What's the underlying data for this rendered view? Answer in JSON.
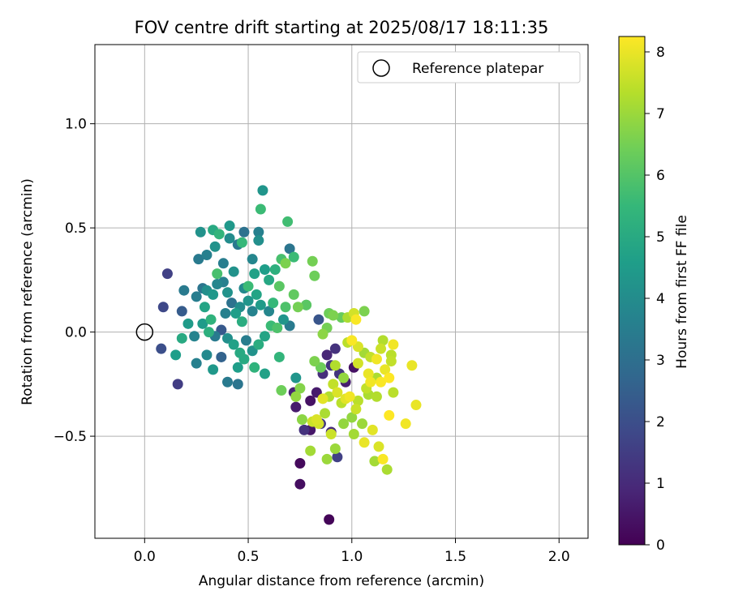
{
  "chart_data": {
    "type": "scatter",
    "title": "FOV centre drift starting at 2025/08/17 18:11:35",
    "xlabel": "Angular distance from reference (arcmin)",
    "ylabel": "Rotation from reference (arcmin)",
    "xlim": [
      -0.24,
      2.14
    ],
    "ylim": [
      -0.99,
      1.38
    ],
    "xticks": [
      0.0,
      0.5,
      1.0,
      1.5,
      2.0
    ],
    "xtick_labels": [
      "0.0",
      "0.5",
      "1.0",
      "1.5",
      "2.0"
    ],
    "yticks": [
      -0.5,
      0.0,
      0.5,
      1.0
    ],
    "ytick_labels": [
      "−0.5",
      "0.0",
      "0.5",
      "1.0"
    ],
    "grid": true,
    "legend": {
      "label": "Reference platepar",
      "placement": "top-right"
    },
    "reference_point": {
      "x": 0.0,
      "y": 0.0
    },
    "colorbar": {
      "label": "Hours from first FF file",
      "min": 0,
      "max": 8.25,
      "ticks": [
        0,
        1,
        2,
        3,
        4,
        5,
        6,
        7,
        8
      ],
      "tick_labels": [
        "0",
        "1",
        "2",
        "3",
        "4",
        "5",
        "6",
        "7",
        "8"
      ],
      "colormap": [
        "#440154",
        "#482878",
        "#3e4989",
        "#31688e",
        "#26828e",
        "#1f9e89",
        "#35b779",
        "#6ece58",
        "#b5de2b",
        "#fde725"
      ]
    },
    "series": [
      {
        "points": [
          [
            0.11,
            0.28,
            1.6
          ],
          [
            0.09,
            0.12,
            1.8
          ],
          [
            0.08,
            -0.08,
            2.0
          ],
          [
            0.16,
            -0.25,
            1.5
          ],
          [
            0.18,
            0.1,
            2.4
          ],
          [
            0.25,
            0.17,
            3.5
          ],
          [
            0.28,
            0.21,
            3.2
          ],
          [
            0.3,
            0.2,
            4.1
          ],
          [
            0.33,
            0.18,
            4.4
          ],
          [
            0.35,
            0.23,
            3.8
          ],
          [
            0.38,
            0.24,
            3.6
          ],
          [
            0.4,
            0.19,
            4.2
          ],
          [
            0.42,
            0.14,
            3.1
          ],
          [
            0.44,
            0.09,
            4.6
          ],
          [
            0.46,
            0.12,
            4.0
          ],
          [
            0.48,
            0.21,
            3.9
          ],
          [
            0.5,
            0.15,
            4.3
          ],
          [
            0.52,
            0.1,
            3.7
          ],
          [
            0.54,
            0.18,
            4.8
          ],
          [
            0.56,
            0.13,
            4.5
          ],
          [
            0.26,
            0.35,
            3.4
          ],
          [
            0.3,
            0.37,
            3.6
          ],
          [
            0.34,
            0.41,
            4.2
          ],
          [
            0.38,
            0.33,
            3.5
          ],
          [
            0.41,
            0.45,
            4.0
          ],
          [
            0.45,
            0.42,
            3.3
          ],
          [
            0.48,
            0.48,
            3.1
          ],
          [
            0.52,
            0.35,
            3.8
          ],
          [
            0.55,
            0.44,
            4.1
          ],
          [
            0.57,
            0.68,
            4.3
          ],
          [
            0.56,
            0.59,
            5.6
          ],
          [
            0.58,
            0.3,
            4.6
          ],
          [
            0.6,
            0.25,
            4.9
          ],
          [
            0.63,
            0.3,
            5.2
          ],
          [
            0.66,
            0.35,
            5.8
          ],
          [
            0.7,
            0.4,
            3.2
          ],
          [
            0.72,
            0.36,
            5.6
          ],
          [
            0.69,
            0.53,
            5.7
          ],
          [
            0.27,
            0.48,
            4.2
          ],
          [
            0.33,
            0.49,
            5.0
          ],
          [
            0.36,
            0.47,
            5.4
          ],
          [
            0.41,
            0.51,
            4.4
          ],
          [
            0.47,
            0.43,
            5.5
          ],
          [
            0.55,
            0.48,
            3.6
          ],
          [
            0.24,
            -0.02,
            3.7
          ],
          [
            0.28,
            0.04,
            4.5
          ],
          [
            0.31,
            0.0,
            5.2
          ],
          [
            0.34,
            -0.02,
            3.4
          ],
          [
            0.37,
            0.01,
            2.3
          ],
          [
            0.4,
            -0.03,
            4.1
          ],
          [
            0.43,
            -0.06,
            4.7
          ],
          [
            0.46,
            -0.1,
            5.0
          ],
          [
            0.49,
            -0.04,
            3.5
          ],
          [
            0.52,
            -0.09,
            4.2
          ],
          [
            0.55,
            -0.06,
            5.1
          ],
          [
            0.58,
            -0.02,
            4.8
          ],
          [
            0.61,
            0.03,
            5.6
          ],
          [
            0.64,
            0.02,
            5.9
          ],
          [
            0.67,
            0.06,
            4.3
          ],
          [
            0.7,
            0.03,
            3.4
          ],
          [
            0.15,
            -0.11,
            4.6
          ],
          [
            0.18,
            -0.03,
            5.0
          ],
          [
            0.25,
            -0.15,
            3.6
          ],
          [
            0.3,
            -0.11,
            3.9
          ],
          [
            0.33,
            -0.18,
            4.4
          ],
          [
            0.37,
            -0.12,
            2.6
          ],
          [
            0.4,
            -0.24,
            3.4
          ],
          [
            0.45,
            -0.25,
            3.2
          ],
          [
            0.45,
            -0.17,
            4.6
          ],
          [
            0.48,
            -0.13,
            5.0
          ],
          [
            0.53,
            -0.17,
            5.3
          ],
          [
            0.58,
            -0.2,
            4.7
          ],
          [
            0.65,
            -0.12,
            5.4
          ],
          [
            0.66,
            -0.28,
            6.4
          ],
          [
            0.73,
            -0.22,
            4.3
          ],
          [
            0.19,
            0.2,
            3.4
          ],
          [
            0.21,
            0.04,
            4.5
          ],
          [
            0.29,
            0.12,
            4.8
          ],
          [
            0.32,
            0.06,
            5.3
          ],
          [
            0.35,
            0.28,
            5.8
          ],
          [
            0.39,
            0.09,
            3.6
          ],
          [
            0.43,
            0.29,
            4.2
          ],
          [
            0.47,
            0.05,
            5.1
          ],
          [
            0.5,
            0.22,
            5.6
          ],
          [
            0.53,
            0.28,
            4.7
          ],
          [
            0.6,
            0.1,
            3.8
          ],
          [
            0.62,
            0.14,
            5.5
          ],
          [
            0.65,
            0.22,
            6.1
          ],
          [
            0.68,
            0.12,
            5.9
          ],
          [
            0.72,
            0.18,
            6.2
          ],
          [
            0.74,
            0.12,
            6.5
          ],
          [
            0.78,
            0.13,
            6.1
          ],
          [
            0.81,
            0.34,
            6.5
          ],
          [
            0.82,
            0.27,
            6.4
          ],
          [
            0.68,
            0.33,
            6.6
          ],
          [
            0.72,
            -0.29,
            0.8
          ],
          [
            0.73,
            -0.36,
            0.6
          ],
          [
            0.75,
            -0.63,
            0.2
          ],
          [
            0.75,
            -0.73,
            0.3
          ],
          [
            0.77,
            -0.47,
            1.2
          ],
          [
            0.8,
            -0.47,
            0.5
          ],
          [
            0.8,
            -0.33,
            0.4
          ],
          [
            0.83,
            -0.29,
            0.6
          ],
          [
            0.85,
            -0.44,
            1.4
          ],
          [
            0.88,
            -0.11,
            0.9
          ],
          [
            0.89,
            -0.9,
            0.1
          ],
          [
            0.9,
            -0.48,
            1.0
          ],
          [
            0.92,
            -0.08,
            1.2
          ],
          [
            0.93,
            -0.6,
            1.6
          ],
          [
            0.97,
            -0.24,
            0.7
          ],
          [
            0.9,
            -0.16,
            1.3
          ],
          [
            0.86,
            -0.2,
            1.1
          ],
          [
            0.84,
            0.06,
            2.2
          ],
          [
            1.01,
            -0.17,
            0.4
          ],
          [
            0.94,
            -0.2,
            1.3
          ],
          [
            0.75,
            -0.27,
            6.7
          ],
          [
            0.73,
            -0.31,
            6.9
          ],
          [
            0.76,
            -0.42,
            6.8
          ],
          [
            0.8,
            -0.57,
            7.1
          ],
          [
            0.81,
            -0.43,
            7.6
          ],
          [
            0.83,
            -0.42,
            7.8
          ],
          [
            0.84,
            -0.44,
            7.7
          ],
          [
            0.86,
            -0.32,
            7.9
          ],
          [
            0.87,
            -0.39,
            7.2
          ],
          [
            0.88,
            -0.61,
            7.0
          ],
          [
            0.89,
            -0.31,
            7.3
          ],
          [
            0.9,
            -0.49,
            7.6
          ],
          [
            0.91,
            -0.25,
            7.5
          ],
          [
            0.92,
            -0.56,
            7.0
          ],
          [
            0.93,
            -0.29,
            7.8
          ],
          [
            0.95,
            -0.34,
            7.4
          ],
          [
            0.96,
            -0.44,
            6.9
          ],
          [
            0.97,
            -0.32,
            7.9
          ],
          [
            0.99,
            -0.31,
            8.1
          ],
          [
            1.0,
            -0.41,
            6.9
          ],
          [
            1.01,
            -0.49,
            7.1
          ],
          [
            1.02,
            -0.37,
            7.6
          ],
          [
            1.03,
            -0.33,
            7.4
          ],
          [
            1.05,
            -0.44,
            7.0
          ],
          [
            1.06,
            -0.53,
            8.0
          ],
          [
            1.07,
            -0.27,
            7.5
          ],
          [
            1.08,
            -0.3,
            7.2
          ],
          [
            1.09,
            -0.24,
            8.1
          ],
          [
            1.1,
            -0.47,
            7.9
          ],
          [
            1.11,
            -0.62,
            7.1
          ],
          [
            1.12,
            -0.31,
            7.3
          ],
          [
            1.13,
            -0.55,
            7.8
          ],
          [
            1.14,
            -0.24,
            8.2
          ],
          [
            1.15,
            -0.61,
            8.2
          ],
          [
            1.16,
            -0.18,
            8.0
          ],
          [
            1.17,
            -0.66,
            7.2
          ],
          [
            1.18,
            -0.4,
            8.3
          ],
          [
            1.19,
            -0.14,
            7.5
          ],
          [
            1.2,
            -0.06,
            8.1
          ],
          [
            1.2,
            -0.29,
            7.4
          ],
          [
            1.26,
            -0.44,
            8.1
          ],
          [
            1.29,
            -0.16,
            8.0
          ],
          [
            1.31,
            -0.35,
            8.0
          ],
          [
            1.15,
            -0.04,
            7.3
          ],
          [
            1.18,
            -0.22,
            8.3
          ],
          [
            0.86,
            -0.01,
            6.8
          ],
          [
            0.88,
            0.02,
            6.5
          ],
          [
            0.91,
            0.08,
            6.6
          ],
          [
            0.95,
            0.07,
            6.3
          ],
          [
            0.98,
            0.07,
            7.2
          ],
          [
            1.01,
            0.09,
            7.7
          ],
          [
            1.02,
            0.06,
            8.2
          ],
          [
            1.06,
            0.1,
            6.6
          ],
          [
            0.98,
            -0.05,
            7.4
          ],
          [
            1.0,
            -0.04,
            8.2
          ],
          [
            1.03,
            -0.07,
            7.8
          ],
          [
            1.06,
            -0.1,
            7.1
          ],
          [
            1.09,
            -0.12,
            7.5
          ],
          [
            1.12,
            -0.13,
            8.1
          ],
          [
            1.14,
            -0.08,
            7.6
          ],
          [
            0.92,
            -0.16,
            7.3
          ],
          [
            0.96,
            -0.22,
            6.9
          ],
          [
            1.03,
            -0.15,
            7.7
          ],
          [
            1.08,
            -0.2,
            8.0
          ],
          [
            1.12,
            -0.22,
            7.2
          ],
          [
            1.19,
            -0.11,
            7.4
          ],
          [
            0.82,
            -0.14,
            6.6
          ],
          [
            0.85,
            -0.17,
            6.4
          ],
          [
            0.78,
            0.13,
            5.8
          ],
          [
            0.89,
            0.09,
            6.4
          ]
        ]
      }
    ]
  }
}
